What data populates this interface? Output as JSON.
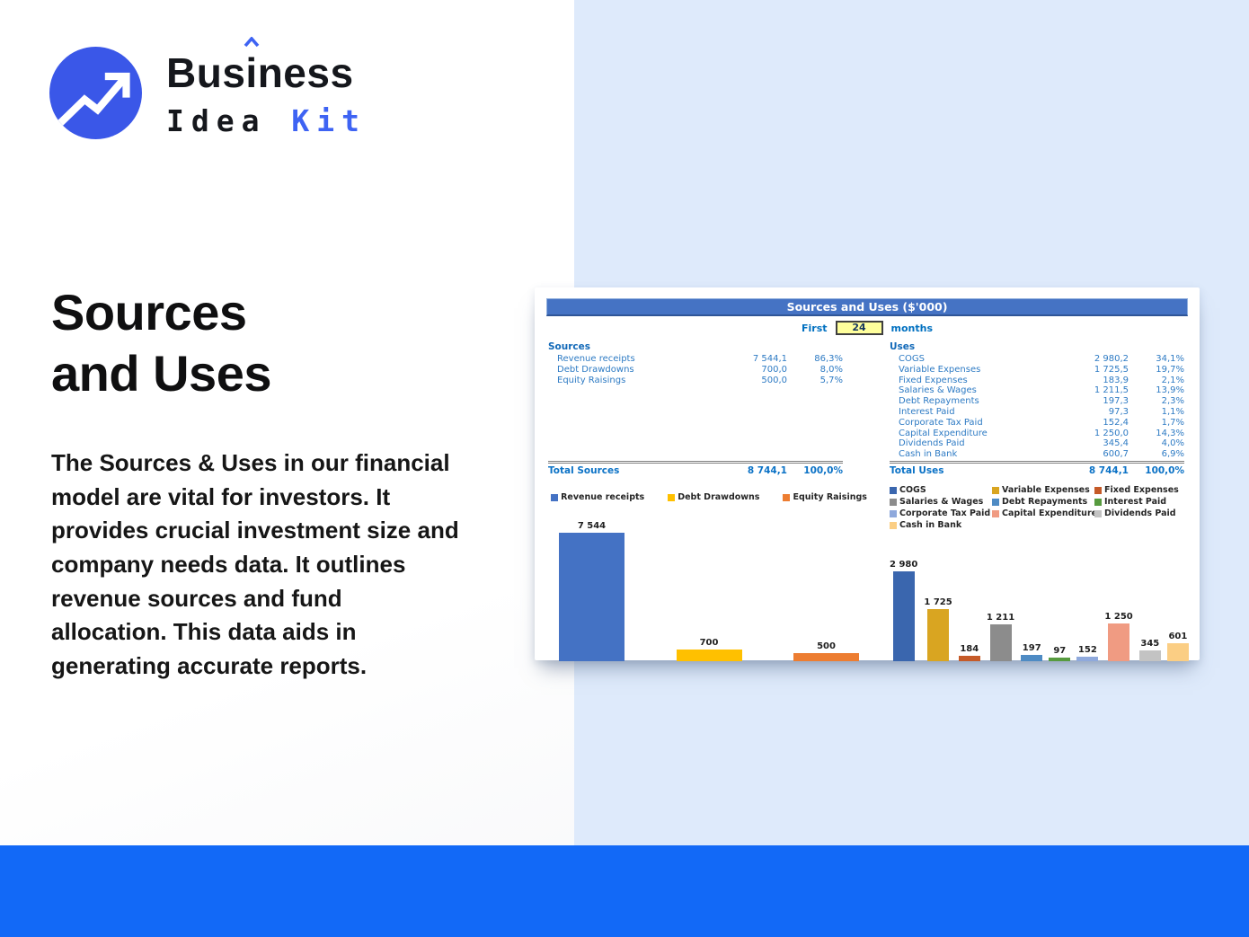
{
  "brand": {
    "line1_pre": "Bus",
    "line1_i": "i",
    "line1_post": "ness",
    "line2_dark": "Idea",
    "line2_accent": "Kit",
    "accent_color": "#3e63f3",
    "logo_icon": "trending-up-arrow-icon"
  },
  "hero": {
    "title_line1": "Sources",
    "title_line2": "and Uses",
    "description": "The Sources & Uses in our financial model are vital for investors. It provides crucial investment size and company needs data. It outlines revenue sources and fund allocation. This data aids in generating accurate reports."
  },
  "sheet": {
    "title": "Sources and Uses ($'000)",
    "title_bar_color": "#4573c4",
    "period": {
      "prefix": "First",
      "value": "24",
      "suffix": "months"
    },
    "sources_table": {
      "header": "Sources",
      "rows": [
        {
          "label": "Revenue receipts",
          "value": "7 544,1",
          "pct": "86,3%"
        },
        {
          "label": "Debt Drawdowns",
          "value": "700,0",
          "pct": "8,0%"
        },
        {
          "label": "Equity Raisings",
          "value": "500,0",
          "pct": "5,7%"
        }
      ],
      "total": {
        "label": "Total Sources",
        "value": "8 744,1",
        "pct": "100,0%"
      }
    },
    "uses_table": {
      "header": "Uses",
      "rows": [
        {
          "label": "COGS",
          "value": "2 980,2",
          "pct": "34,1%"
        },
        {
          "label": "Variable Expenses",
          "value": "1 725,5",
          "pct": "19,7%"
        },
        {
          "label": "Fixed Expenses",
          "value": "183,9",
          "pct": "2,1%"
        },
        {
          "label": "Salaries & Wages",
          "value": "1 211,5",
          "pct": "13,9%"
        },
        {
          "label": "Debt Repayments",
          "value": "197,3",
          "pct": "2,3%"
        },
        {
          "label": "Interest Paid",
          "value": "97,3",
          "pct": "1,1%"
        },
        {
          "label": "Corporate Tax Paid",
          "value": "152,4",
          "pct": "1,7%"
        },
        {
          "label": "Capital Expenditure",
          "value": "1 250,0",
          "pct": "14,3%"
        },
        {
          "label": "Dividends Paid",
          "value": "345,4",
          "pct": "4,0%"
        },
        {
          "label": "Cash in Bank",
          "value": "600,7",
          "pct": "6,9%"
        }
      ],
      "total": {
        "label": "Total Uses",
        "value": "8 744,1",
        "pct": "100,0%"
      }
    }
  },
  "chart_data": [
    {
      "type": "bar",
      "title": "Sources",
      "categories": [
        "Revenue receipts",
        "Debt Drawdowns",
        "Equity Raisings"
      ],
      "values": [
        7544,
        700,
        500
      ],
      "bar_labels": [
        "7 544",
        "700",
        "500"
      ],
      "colors": [
        "#4472c4",
        "#ffc000",
        "#ed7d31"
      ],
      "legend_position": "top",
      "grid": false,
      "axes_visible": false,
      "ylim": [
        0,
        7544
      ]
    },
    {
      "type": "bar",
      "title": "Uses",
      "categories": [
        "COGS",
        "Variable Expenses",
        "Fixed Expenses",
        "Salaries & Wages",
        "Debt Repayments",
        "Interest Paid",
        "Corporate Tax Paid",
        "Capital Expenditure",
        "Dividends Paid",
        "Cash in Bank"
      ],
      "values": [
        2980,
        1725,
        184,
        1211,
        197,
        97,
        152,
        1250,
        345,
        601
      ],
      "bar_labels": [
        "2 980",
        "1 725",
        "184",
        "1 211",
        "197",
        "97",
        "152",
        "1 250",
        "345",
        "601"
      ],
      "colors": [
        "#3a66ae",
        "#d9a521",
        "#c55a28",
        "#8c8c8c",
        "#4e8bc4",
        "#579b3f",
        "#8fa9dc",
        "#f09b82",
        "#c3c3c3",
        "#fbce84"
      ],
      "legend_position": "top",
      "grid": false,
      "axes_visible": false,
      "ylim": [
        0,
        2980
      ]
    }
  ],
  "footer": {
    "bar_color": "#1269f7"
  }
}
